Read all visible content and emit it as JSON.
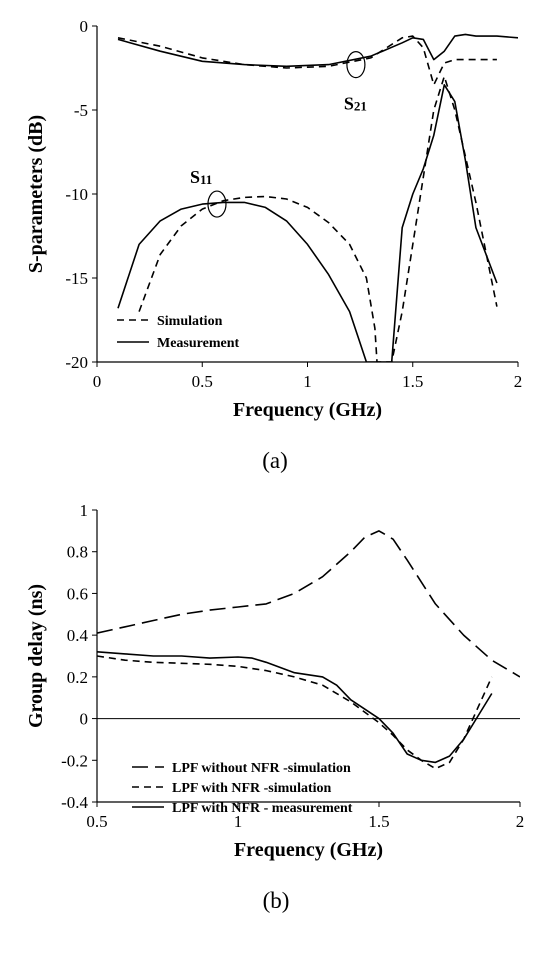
{
  "chart_data": [
    {
      "type": "line",
      "xlabel": "Frequency (GHz)",
      "ylabel": "S-parameters (dB)",
      "xlim": [
        0,
        2
      ],
      "ylim": [
        -20,
        0
      ],
      "xticks": [
        0,
        0.5,
        1,
        1.5,
        2
      ],
      "xtick_labels": [
        "0",
        "0.5",
        "1",
        "1.5",
        "2"
      ],
      "yticks": [
        -20,
        -15,
        -10,
        -5,
        0
      ],
      "ytick_labels": [
        "-20",
        "-15",
        "-10",
        "-5",
        "0"
      ],
      "legend_position": "bottom-left",
      "caption": "(a)",
      "annotations": [
        {
          "label": "S",
          "sub": "21",
          "x": 1.23,
          "y": -2.3
        },
        {
          "label": "S",
          "sub": "11",
          "x": 0.57,
          "y": -10.6
        }
      ],
      "series": [
        {
          "name": "Simulation",
          "style": "dashed",
          "parameter": "S21",
          "x": [
            0.1,
            0.3,
            0.5,
            0.7,
            0.9,
            1.1,
            1.3,
            1.45,
            1.5,
            1.55,
            1.6,
            1.65,
            1.7,
            1.8,
            1.9
          ],
          "y": [
            -0.7,
            -1.2,
            -1.9,
            -2.3,
            -2.5,
            -2.4,
            -1.9,
            -0.7,
            -0.6,
            -1.3,
            -3.5,
            -2.2,
            -2.0,
            -2.0,
            -2.0
          ]
        },
        {
          "name": "Simulation",
          "style": "dashed",
          "parameter": "S11",
          "x": [
            0.2,
            0.3,
            0.4,
            0.5,
            0.6,
            0.7,
            0.8,
            0.9,
            1.0,
            1.1,
            1.2,
            1.28,
            1.32,
            1.33,
            1.4,
            1.45,
            1.5,
            1.55,
            1.6,
            1.65,
            1.7,
            1.8,
            1.9
          ],
          "y": [
            -17.0,
            -13.6,
            -11.9,
            -10.9,
            -10.4,
            -10.2,
            -10.15,
            -10.3,
            -10.8,
            -11.7,
            -13.0,
            -15.0,
            -18.0,
            -20.0,
            -20.0,
            -17.0,
            -13.0,
            -9.0,
            -5.0,
            -3.0,
            -5.0,
            -10.5,
            -16.7
          ]
        },
        {
          "name": "Measurement",
          "style": "solid",
          "parameter": "S21",
          "x": [
            0.1,
            0.3,
            0.5,
            0.7,
            0.9,
            1.1,
            1.3,
            1.45,
            1.5,
            1.55,
            1.6,
            1.65,
            1.7,
            1.75,
            1.8,
            1.9,
            2.0
          ],
          "y": [
            -0.8,
            -1.5,
            -2.1,
            -2.3,
            -2.4,
            -2.3,
            -1.8,
            -1.0,
            -0.7,
            -0.8,
            -2.0,
            -1.5,
            -0.6,
            -0.5,
            -0.6,
            -0.6,
            -0.7
          ]
        },
        {
          "name": "Measurement",
          "style": "solid",
          "parameter": "S11",
          "x": [
            0.1,
            0.2,
            0.3,
            0.4,
            0.5,
            0.6,
            0.7,
            0.8,
            0.9,
            1.0,
            1.1,
            1.2,
            1.24,
            1.28,
            1.4,
            1.45,
            1.5,
            1.55,
            1.6,
            1.65,
            1.7,
            1.75,
            1.8,
            1.9
          ],
          "y": [
            -16.8,
            -13.0,
            -11.6,
            -10.9,
            -10.6,
            -10.5,
            -10.5,
            -10.8,
            -11.6,
            -13.0,
            -14.8,
            -17.0,
            -18.5,
            -20.0,
            -20.0,
            -12.0,
            -10.0,
            -8.5,
            -6.5,
            -3.5,
            -4.5,
            -8.0,
            -12.0,
            -15.3
          ]
        }
      ]
    },
    {
      "type": "line",
      "xlabel": "Frequency (GHz)",
      "ylabel": "Group delay (ns)",
      "xlim": [
        0.5,
        2
      ],
      "ylim": [
        -0.4,
        1
      ],
      "xticks": [
        0.5,
        1,
        1.5,
        2
      ],
      "xtick_labels": [
        "0.5",
        "1",
        "1.5",
        "2"
      ],
      "yticks": [
        -0.4,
        -0.2,
        0,
        0.2,
        0.4,
        0.6,
        0.8,
        1
      ],
      "ytick_labels": [
        "-0.4",
        "-0.2",
        "0",
        "0.2",
        "0.4",
        "0.6",
        "0.8",
        "1"
      ],
      "legend_position": "bottom-left",
      "caption": "(b)",
      "series": [
        {
          "name": "LPF without NFR -simulation",
          "style": "longdash",
          "x": [
            0.5,
            0.6,
            0.7,
            0.8,
            0.9,
            1.0,
            1.1,
            1.2,
            1.3,
            1.4,
            1.45,
            1.5,
            1.55,
            1.6,
            1.7,
            1.8,
            1.9,
            2.0
          ],
          "y": [
            0.41,
            0.44,
            0.47,
            0.5,
            0.52,
            0.535,
            0.55,
            0.6,
            0.68,
            0.8,
            0.87,
            0.9,
            0.86,
            0.76,
            0.55,
            0.4,
            0.28,
            0.2
          ]
        },
        {
          "name": "LPF with NFR -simulation",
          "style": "dashed",
          "x": [
            0.5,
            0.6,
            0.7,
            0.8,
            0.9,
            1.0,
            1.1,
            1.2,
            1.3,
            1.4,
            1.5,
            1.55,
            1.6,
            1.65,
            1.7,
            1.75,
            1.8,
            1.85,
            1.9
          ],
          "y": [
            0.3,
            0.28,
            0.27,
            0.265,
            0.26,
            0.25,
            0.23,
            0.2,
            0.16,
            0.08,
            -0.02,
            -0.08,
            -0.15,
            -0.2,
            -0.24,
            -0.21,
            -0.1,
            0.05,
            0.2
          ]
        },
        {
          "name": "LPF with NFR - measurement",
          "style": "solid",
          "x": [
            0.5,
            0.6,
            0.7,
            0.8,
            0.9,
            1.0,
            1.05,
            1.1,
            1.2,
            1.3,
            1.35,
            1.4,
            1.5,
            1.55,
            1.6,
            1.65,
            1.7,
            1.75,
            1.8,
            1.85,
            1.9
          ],
          "y": [
            0.32,
            0.31,
            0.3,
            0.3,
            0.29,
            0.295,
            0.29,
            0.27,
            0.22,
            0.2,
            0.16,
            0.09,
            0.0,
            -0.07,
            -0.17,
            -0.2,
            -0.21,
            -0.18,
            -0.1,
            0.01,
            0.12
          ]
        }
      ]
    }
  ]
}
